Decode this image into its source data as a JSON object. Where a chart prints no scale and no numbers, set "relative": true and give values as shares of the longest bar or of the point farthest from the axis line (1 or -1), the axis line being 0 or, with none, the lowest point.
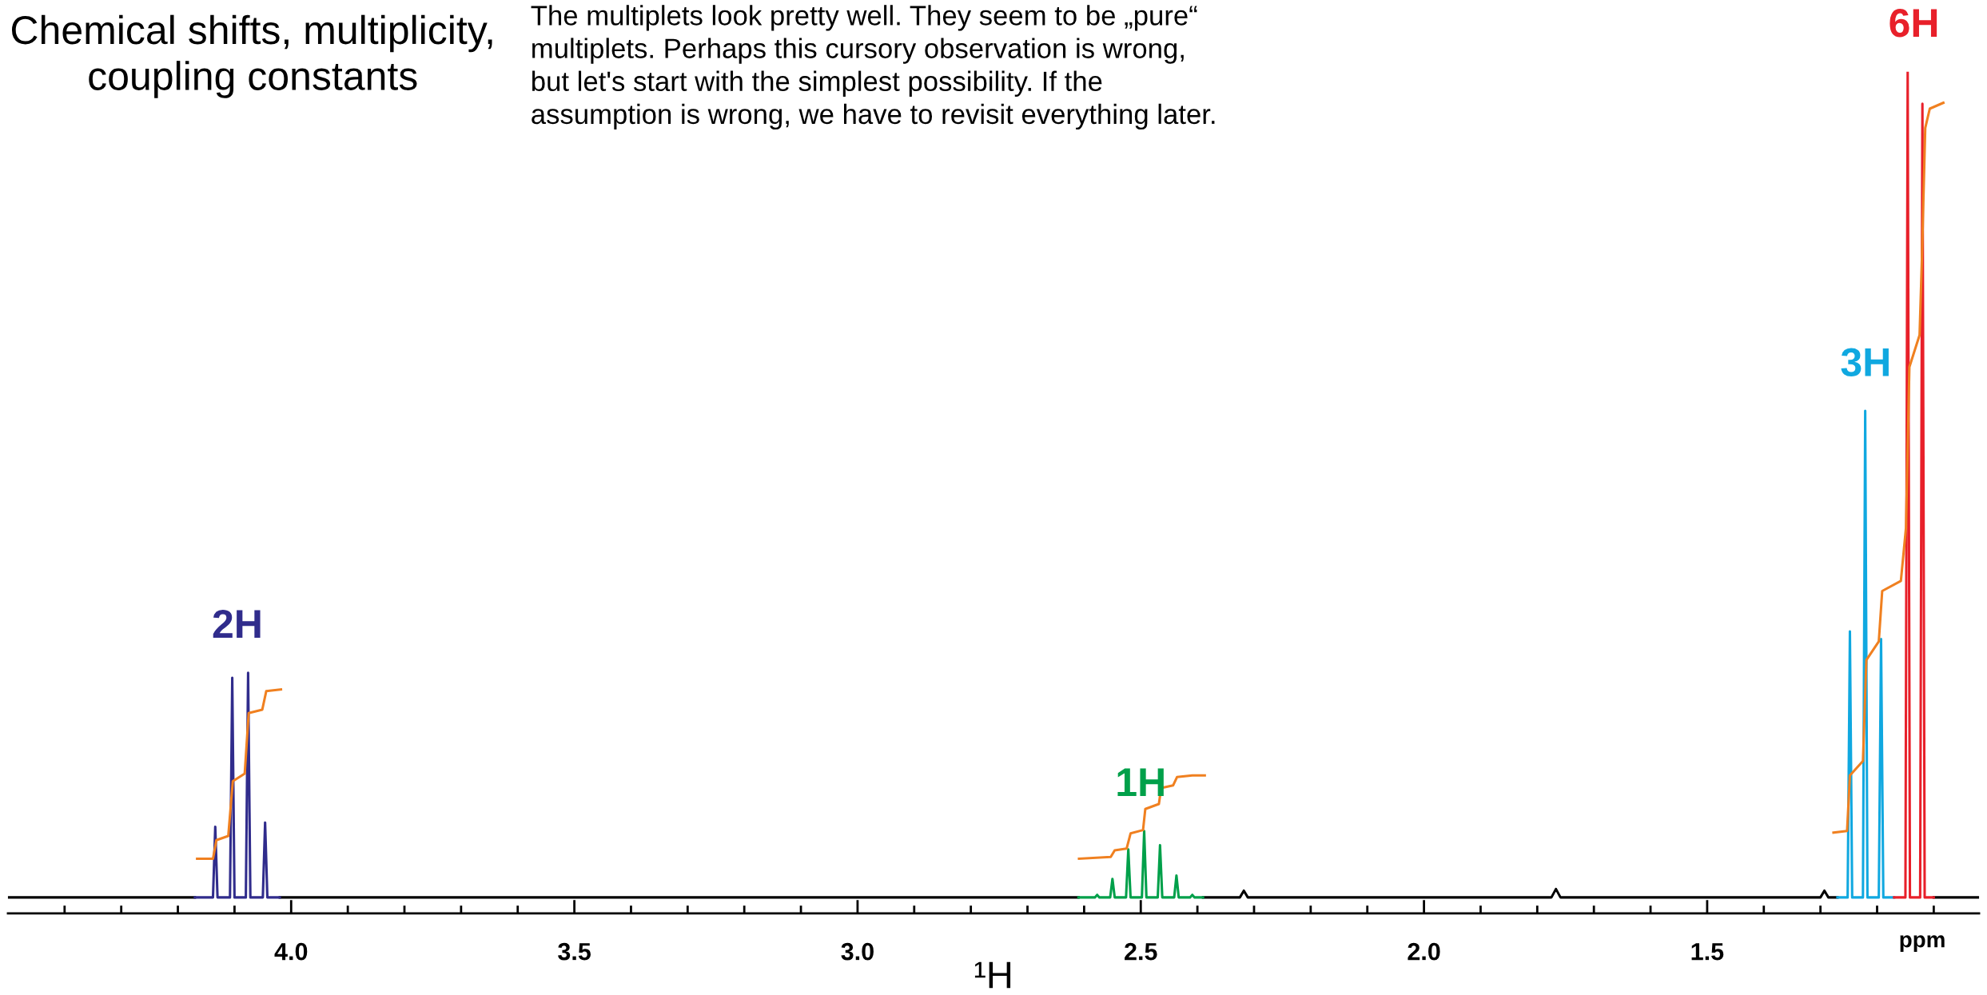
{
  "chart_data": {
    "type": "line",
    "relative": true,
    "title": "Chemical shifts, multiplicity,\ncoupling constants",
    "xlabel": "¹H",
    "xlim": [
      4.5,
      1.02
    ],
    "xticks": [
      {
        "value": 4.4,
        "label": null
      },
      {
        "value": 4.3,
        "label": null
      },
      {
        "value": 4.2,
        "label": null
      },
      {
        "value": 4.1,
        "label": null
      },
      {
        "value": 4.0,
        "label": "4.0"
      },
      {
        "value": 3.9,
        "label": null
      },
      {
        "value": 3.8,
        "label": null
      },
      {
        "value": 3.7,
        "label": null
      },
      {
        "value": 3.6,
        "label": null
      },
      {
        "value": 3.5,
        "label": "3.5"
      },
      {
        "value": 3.4,
        "label": null
      },
      {
        "value": 3.3,
        "label": null
      },
      {
        "value": 3.2,
        "label": null
      },
      {
        "value": 3.1,
        "label": null
      },
      {
        "value": 3.0,
        "label": "3.0"
      },
      {
        "value": 2.9,
        "label": null
      },
      {
        "value": 2.8,
        "label": null
      },
      {
        "value": 2.7,
        "label": null
      },
      {
        "value": 2.6,
        "label": null
      },
      {
        "value": 2.5,
        "label": "2.5"
      },
      {
        "value": 2.4,
        "label": null
      },
      {
        "value": 2.3,
        "label": null
      },
      {
        "value": 2.2,
        "label": null
      },
      {
        "value": 2.1,
        "label": null
      },
      {
        "value": 2.0,
        "label": "2.0"
      },
      {
        "value": 1.9,
        "label": null
      },
      {
        "value": 1.8,
        "label": null
      },
      {
        "value": 1.7,
        "label": null
      },
      {
        "value": 1.6,
        "label": null
      },
      {
        "value": 1.5,
        "label": "1.5"
      },
      {
        "value": 1.4,
        "label": null
      },
      {
        "value": 1.3,
        "label": null
      },
      {
        "value": 1.2,
        "label": null
      },
      {
        "value": 1.1,
        "label": null
      }
    ],
    "tick_labels": "x",
    "series": [
      {
        "color": "#000000",
        "x": [
          4.5,
          4.17,
          4.1,
          4.02,
          2.61,
          2.5,
          2.39,
          2.325,
          2.318,
          2.311,
          1.775,
          1.767,
          1.759,
          1.3,
          1.293,
          1.286,
          1.27,
          1.2,
          1.1,
          1.02
        ],
        "values": [
          0.019,
          0.019,
          null,
          0.019,
          0.019,
          null,
          0.019,
          0.019,
          0.027,
          0.019,
          0.019,
          0.029,
          0.019,
          0.019,
          0.027,
          0.019,
          0.019,
          null,
          0.019,
          0.019
        ]
      },
      {
        "color": "#302c8c",
        "x": [
          4.17,
          4.138,
          4.134,
          4.13,
          4.108,
          4.104,
          4.1,
          4.08,
          4.076,
          4.072,
          4.05,
          4.046,
          4.042,
          4.02
        ],
        "values": [
          0.019,
          0.019,
          0.103,
          0.019,
          0.019,
          0.28,
          0.019,
          0.019,
          0.286,
          0.019,
          0.019,
          0.108,
          0.019,
          0.019
        ]
      },
      {
        "color": "#00a04a",
        "x": [
          2.61,
          2.581,
          2.577,
          2.573,
          2.554,
          2.55,
          2.546,
          2.526,
          2.522,
          2.518,
          2.498,
          2.494,
          2.49,
          2.47,
          2.466,
          2.462,
          2.441,
          2.437,
          2.433,
          2.413,
          2.409,
          2.405,
          2.39
        ],
        "values": [
          0.019,
          0.019,
          0.022,
          0.019,
          0.019,
          0.041,
          0.019,
          0.019,
          0.076,
          0.019,
          0.019,
          0.098,
          0.019,
          0.019,
          0.081,
          0.019,
          0.019,
          0.045,
          0.019,
          0.019,
          0.022,
          0.019,
          0.019
        ]
      },
      {
        "color": "#10a8e0",
        "x": [
          1.27,
          1.252,
          1.248,
          1.244,
          1.225,
          1.221,
          1.217,
          1.197,
          1.193,
          1.189,
          1.17
        ],
        "values": [
          0.019,
          0.019,
          0.335,
          0.019,
          0.019,
          0.597,
          0.019,
          0.019,
          0.326,
          0.019,
          0.019
        ]
      },
      {
        "color": "#e8202a",
        "x": [
          1.17,
          1.15,
          1.146,
          1.142,
          1.124,
          1.12,
          1.116,
          1.1
        ],
        "values": [
          0.019,
          0.019,
          1.0,
          0.019,
          0.019,
          0.962,
          0.019,
          0.019
        ]
      },
      {
        "color": "#f08020",
        "x": [
          4.166,
          4.138,
          4.132,
          4.111,
          4.103,
          4.082,
          4.075,
          4.051,
          4.044,
          4.018
        ],
        "values": [
          0.065,
          0.065,
          0.087,
          0.092,
          0.157,
          0.166,
          0.238,
          0.242,
          0.264,
          0.266
        ]
      },
      {
        "color": "#f08020",
        "x": [
          2.609,
          2.553,
          2.546,
          2.525,
          2.518,
          2.496,
          2.492,
          2.468,
          2.464,
          2.443,
          2.436,
          2.409,
          2.387
        ],
        "values": [
          0.065,
          0.067,
          0.075,
          0.077,
          0.095,
          0.099,
          0.124,
          0.13,
          0.149,
          0.152,
          0.162,
          0.164,
          0.164
        ]
      },
      {
        "color": "#f08020",
        "x": [
          1.277,
          1.253,
          1.248,
          1.225,
          1.219,
          1.197,
          1.191,
          1.158,
          1.149,
          1.143,
          1.125,
          1.121,
          1.115,
          1.107,
          1.083
        ],
        "values": [
          0.096,
          0.098,
          0.164,
          0.181,
          0.301,
          0.323,
          0.383,
          0.395,
          0.458,
          0.649,
          0.687,
          0.775,
          0.933,
          0.956,
          0.963
        ]
      }
    ],
    "annotations": [
      "The multiplets look pretty well. They seem to be „pure“\nmultiplets. Perhaps this cursory observation is wrong,\nbut let's start with the simplest possibility. If the\nassumption is wrong, we have to revisit everything later.",
      "ppm",
      "2H",
      "1H",
      "3H",
      "6H"
    ]
  }
}
